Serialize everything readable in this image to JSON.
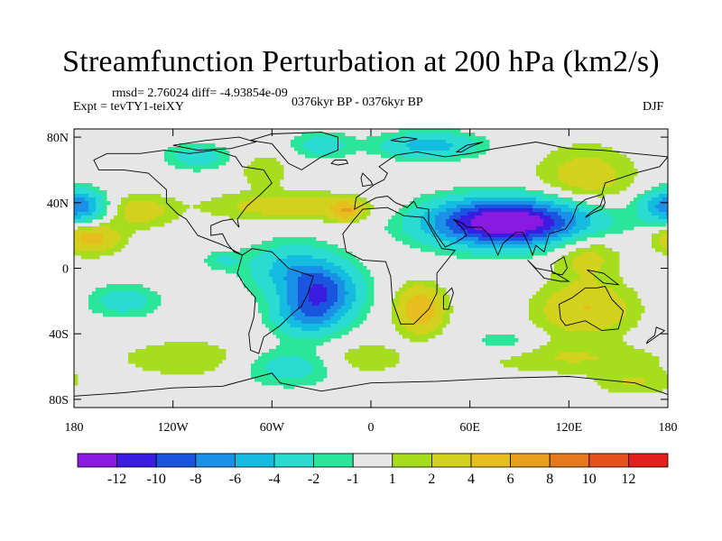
{
  "header": {
    "title": "Streamfunction Perturbation at 200 hPa (km2/s)",
    "rmsd_line": "rmsd= 2.76024 diff= -4.93854e-09",
    "experiment": "Expt = tevTY1-teiXY",
    "period": "0376kyr BP - 0376kyr BP",
    "season": "DJF"
  },
  "colors": {
    "levels": [
      "#8a1ae0",
      "#3a1de0",
      "#1a55e0",
      "#1a90e6",
      "#14bde0",
      "#28dcd2",
      "#2ae69a",
      "#e6e6e6",
      "#a6de1e",
      "#d2d21e",
      "#e6be1e",
      "#e6a01e",
      "#e6781e",
      "#e6501e",
      "#e61e1e"
    ],
    "land_outline": "#000000"
  },
  "chart_data": {
    "type": "contour-map",
    "title": "Streamfunction Perturbation at 200 hPa (km2/s)",
    "variable": "Streamfunction perturbation",
    "level_hpa": 200,
    "units": "km2/s",
    "xlim": [
      180,
      -180
    ],
    "ylim": [
      -90,
      90
    ],
    "x_ticks": [
      {
        "lon": -180,
        "label": "180"
      },
      {
        "lon": -120,
        "label": "120W"
      },
      {
        "lon": -60,
        "label": "60W"
      },
      {
        "lon": 0,
        "label": "0"
      },
      {
        "lon": 60,
        "label": "60E"
      },
      {
        "lon": 120,
        "label": "120E"
      },
      {
        "lon": 180,
        "label": "180"
      }
    ],
    "y_ticks": [
      {
        "lat": 80,
        "label": "80N"
      },
      {
        "lat": 40,
        "label": "40N"
      },
      {
        "lat": 0,
        "label": "0"
      },
      {
        "lat": -40,
        "label": "40S"
      },
      {
        "lat": -80,
        "label": "80S"
      }
    ],
    "contour_levels": [
      -12,
      -10,
      -8,
      -6,
      -4,
      -2,
      -1,
      1,
      2,
      4,
      6,
      8,
      10,
      12
    ],
    "colorbar_labels": [
      "-12",
      "-10",
      "-8",
      "-6",
      "-4",
      "-2",
      "-1",
      "1",
      "2",
      "4",
      "6",
      "8",
      "10",
      "12"
    ],
    "anomaly_centers": [
      {
        "lon": 90,
        "lat": 28,
        "value": -11,
        "rx": 48,
        "ry": 14
      },
      {
        "lon": 70,
        "lat": 28,
        "value": -5,
        "rx": 40,
        "ry": 14
      },
      {
        "lon": -30,
        "lat": -15,
        "value": -9,
        "rx": 22,
        "ry": 17
      },
      {
        "lon": -50,
        "lat": 0,
        "value": -4,
        "rx": 26,
        "ry": 16
      },
      {
        "lon": -40,
        "lat": -30,
        "value": -4,
        "rx": 20,
        "ry": 12
      },
      {
        "lon": 35,
        "lat": 75,
        "value": -5,
        "rx": 30,
        "ry": 8
      },
      {
        "lon": -30,
        "lat": 75,
        "value": -3,
        "rx": 18,
        "ry": 8
      },
      {
        "lon": -105,
        "lat": 68,
        "value": -3,
        "rx": 20,
        "ry": 8
      },
      {
        "lon": -175,
        "lat": 38,
        "value": -4,
        "rx": 16,
        "ry": 10
      },
      {
        "lon": 178,
        "lat": 38,
        "value": -4,
        "rx": 16,
        "ry": 10
      },
      {
        "lon": -150,
        "lat": -20,
        "value": -3,
        "rx": 22,
        "ry": 10
      },
      {
        "lon": -90,
        "lat": 5,
        "value": -2,
        "rx": 12,
        "ry": 6
      },
      {
        "lon": -50,
        "lat": -60,
        "value": -3,
        "rx": 30,
        "ry": 12
      },
      {
        "lon": 80,
        "lat": -45,
        "value": -2,
        "rx": 18,
        "ry": 8
      },
      {
        "lon": -170,
        "lat": 18,
        "value": 5,
        "rx": 18,
        "ry": 9
      },
      {
        "lon": -140,
        "lat": 35,
        "value": 3,
        "rx": 20,
        "ry": 10
      },
      {
        "lon": -50,
        "lat": 38,
        "value": 3,
        "rx": 50,
        "ry": 9
      },
      {
        "lon": -15,
        "lat": 35,
        "value": 5,
        "rx": 10,
        "ry": 6
      },
      {
        "lon": 30,
        "lat": -25,
        "value": 6,
        "rx": 14,
        "ry": 14
      },
      {
        "lon": 130,
        "lat": -25,
        "value": 4,
        "rx": 30,
        "ry": 16
      },
      {
        "lon": 130,
        "lat": 10,
        "value": 3,
        "rx": 22,
        "ry": 16
      },
      {
        "lon": 130,
        "lat": 55,
        "value": 3,
        "rx": 30,
        "ry": 20
      },
      {
        "lon": -65,
        "lat": 60,
        "value": 2,
        "rx": 15,
        "ry": 10
      },
      {
        "lon": -110,
        "lat": -55,
        "value": 2,
        "rx": 40,
        "ry": 12
      },
      {
        "lon": -5,
        "lat": -55,
        "value": 2,
        "rx": 25,
        "ry": 10
      },
      {
        "lon": 120,
        "lat": -55,
        "value": 2,
        "rx": 60,
        "ry": 10
      },
      {
        "lon": 160,
        "lat": -70,
        "value": 2,
        "rx": 25,
        "ry": 8
      }
    ]
  }
}
